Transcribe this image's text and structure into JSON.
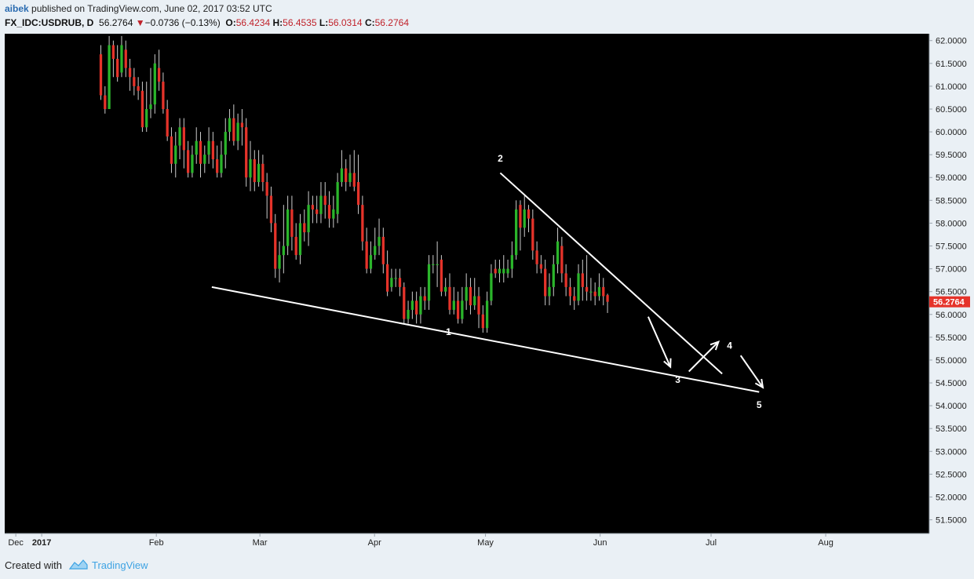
{
  "header": {
    "author": "aibek",
    "published_text": "published on TradingView.com, June 02, 2017 03:52 UTC",
    "symbol": "FX_IDC:USDRUB, D",
    "last_price": "56.2764",
    "change": "−0.0736 (−0.13%)",
    "open_label": "O:",
    "open": "56.4234",
    "high_label": "H:",
    "high": "56.4535",
    "low_label": "L:",
    "low": "56.0314",
    "close_label": "C:",
    "close": "56.2764"
  },
  "footer": {
    "created_with": "Created with",
    "brand": "TradingView"
  },
  "colors": {
    "background": "#000000",
    "up_candle": "#2bb52b",
    "down_candle": "#e5332a",
    "wick": "#cccccc",
    "annotation": "#ffffff",
    "price_tag": "#e5332a",
    "axis_panel": "#eaf0f5"
  },
  "chart_data": {
    "type": "candlestick",
    "symbol": "FX_IDC:USDRUB",
    "interval": "D",
    "ylim": [
      51.2,
      62.15
    ],
    "y_ticks": [
      "62.0000",
      "61.5000",
      "61.0000",
      "60.5000",
      "60.0000",
      "59.5000",
      "59.0000",
      "58.5000",
      "58.0000",
      "57.5000",
      "57.0000",
      "56.5000",
      "56.0000",
      "55.5000",
      "55.0000",
      "54.5000",
      "54.0000",
      "53.5000",
      "53.0000",
      "52.5000",
      "52.0000",
      "51.5000"
    ],
    "x_ticks": [
      {
        "label": "Dec",
        "day": -7
      },
      {
        "label": "2017",
        "day": 0
      },
      {
        "label": "Feb",
        "day": 31
      },
      {
        "label": "Mar",
        "day": 59
      },
      {
        "label": "Apr",
        "day": 90
      },
      {
        "label": "May",
        "day": 120
      },
      {
        "label": "Jun",
        "day": 151
      },
      {
        "label": "Jul",
        "day": 181
      },
      {
        "label": "Aug",
        "day": 212
      }
    ],
    "x_range_days": [
      -10,
      240
    ],
    "last_price_label": "56.2764",
    "last_price": 56.2764,
    "candles": [
      {
        "o": 61.7,
        "c": 60.8,
        "h": 61.9,
        "l": 60.7
      },
      {
        "o": 60.8,
        "c": 60.5,
        "h": 61.0,
        "l": 60.4
      },
      {
        "o": 60.5,
        "c": 61.9,
        "h": 62.1,
        "l": 60.5
      },
      {
        "o": 61.9,
        "c": 61.6,
        "h": 62.0,
        "l": 61.2
      },
      {
        "o": 61.6,
        "c": 61.2,
        "h": 61.9,
        "l": 61.1
      },
      {
        "o": 61.3,
        "c": 61.9,
        "h": 62.1,
        "l": 61.2
      },
      {
        "o": 61.8,
        "c": 61.4,
        "h": 62.0,
        "l": 61.2
      },
      {
        "o": 61.4,
        "c": 61.2,
        "h": 61.6,
        "l": 60.9
      },
      {
        "o": 61.2,
        "c": 61.0,
        "h": 61.4,
        "l": 60.8
      },
      {
        "o": 61.0,
        "c": 60.9,
        "h": 61.2,
        "l": 60.7
      },
      {
        "o": 60.9,
        "c": 60.1,
        "h": 61.1,
        "l": 60.0
      },
      {
        "o": 60.1,
        "c": 60.5,
        "h": 61.1,
        "l": 60.0
      },
      {
        "o": 60.5,
        "c": 60.6,
        "h": 61.4,
        "l": 60.3
      },
      {
        "o": 60.6,
        "c": 61.5,
        "h": 61.7,
        "l": 60.4
      },
      {
        "o": 61.4,
        "c": 61.1,
        "h": 61.8,
        "l": 60.9
      },
      {
        "o": 61.1,
        "c": 60.5,
        "h": 61.3,
        "l": 60.4
      },
      {
        "o": 60.5,
        "c": 59.9,
        "h": 60.7,
        "l": 59.8
      },
      {
        "o": 59.9,
        "c": 59.3,
        "h": 60.1,
        "l": 59.1
      },
      {
        "o": 59.3,
        "c": 59.7,
        "h": 60.0,
        "l": 59.0
      },
      {
        "o": 59.7,
        "c": 60.1,
        "h": 60.3,
        "l": 59.4
      },
      {
        "o": 60.1,
        "c": 59.6,
        "h": 60.3,
        "l": 59.2
      },
      {
        "o": 59.6,
        "c": 59.1,
        "h": 59.8,
        "l": 59.0
      },
      {
        "o": 59.1,
        "c": 59.5,
        "h": 59.7,
        "l": 59.0
      },
      {
        "o": 59.5,
        "c": 59.8,
        "h": 60.1,
        "l": 59.3
      },
      {
        "o": 59.8,
        "c": 59.3,
        "h": 60.0,
        "l": 59.0
      },
      {
        "o": 59.3,
        "c": 59.5,
        "h": 59.7,
        "l": 59.1
      },
      {
        "o": 59.5,
        "c": 59.8,
        "h": 60.1,
        "l": 59.3
      },
      {
        "o": 59.8,
        "c": 59.4,
        "h": 60.0,
        "l": 59.2
      },
      {
        "o": 59.4,
        "c": 59.1,
        "h": 59.7,
        "l": 59.0
      },
      {
        "o": 59.1,
        "c": 59.5,
        "h": 59.8,
        "l": 59.0
      },
      {
        "o": 59.5,
        "c": 60.0,
        "h": 60.3,
        "l": 59.2
      },
      {
        "o": 60.0,
        "c": 60.3,
        "h": 60.5,
        "l": 59.8
      },
      {
        "o": 60.3,
        "c": 59.8,
        "h": 60.6,
        "l": 59.7
      },
      {
        "o": 59.8,
        "c": 60.2,
        "h": 60.4,
        "l": 59.6
      },
      {
        "o": 60.2,
        "c": 60.1,
        "h": 60.5,
        "l": 59.7
      },
      {
        "o": 60.1,
        "c": 59.0,
        "h": 60.3,
        "l": 58.8
      },
      {
        "o": 59.0,
        "c": 59.4,
        "h": 59.8,
        "l": 58.7
      },
      {
        "o": 59.4,
        "c": 58.9,
        "h": 59.6,
        "l": 58.7
      },
      {
        "o": 58.9,
        "c": 59.3,
        "h": 59.6,
        "l": 58.8
      },
      {
        "o": 59.3,
        "c": 58.9,
        "h": 59.5,
        "l": 58.7
      },
      {
        "o": 58.9,
        "c": 58.6,
        "h": 59.1,
        "l": 58.1
      },
      {
        "o": 58.6,
        "c": 58.0,
        "h": 58.8,
        "l": 57.8
      },
      {
        "o": 58.0,
        "c": 57.0,
        "h": 58.2,
        "l": 56.8
      },
      {
        "o": 57.0,
        "c": 57.3,
        "h": 57.6,
        "l": 56.7
      },
      {
        "o": 57.3,
        "c": 57.5,
        "h": 58.4,
        "l": 56.9
      },
      {
        "o": 57.5,
        "c": 58.3,
        "h": 58.6,
        "l": 57.3
      },
      {
        "o": 58.3,
        "c": 57.7,
        "h": 58.6,
        "l": 57.4
      },
      {
        "o": 57.7,
        "c": 57.3,
        "h": 58.0,
        "l": 57.2
      },
      {
        "o": 57.3,
        "c": 58.0,
        "h": 58.2,
        "l": 57.1
      },
      {
        "o": 58.0,
        "c": 57.8,
        "h": 58.3,
        "l": 57.6
      },
      {
        "o": 57.8,
        "c": 58.4,
        "h": 58.7,
        "l": 57.5
      },
      {
        "o": 58.4,
        "c": 58.3,
        "h": 58.6,
        "l": 58.0
      },
      {
        "o": 58.3,
        "c": 58.2,
        "h": 58.6,
        "l": 58.0
      },
      {
        "o": 58.2,
        "c": 58.6,
        "h": 58.9,
        "l": 58.0
      },
      {
        "o": 58.6,
        "c": 58.4,
        "h": 58.9,
        "l": 58.1
      },
      {
        "o": 58.4,
        "c": 58.1,
        "h": 58.7,
        "l": 57.9
      },
      {
        "o": 58.1,
        "c": 58.3,
        "h": 58.6,
        "l": 57.9
      },
      {
        "o": 58.2,
        "c": 58.9,
        "h": 59.1,
        "l": 58.0
      },
      {
        "o": 58.9,
        "c": 59.2,
        "h": 59.6,
        "l": 58.8
      },
      {
        "o": 59.2,
        "c": 58.9,
        "h": 59.4,
        "l": 58.7
      },
      {
        "o": 58.9,
        "c": 59.1,
        "h": 59.5,
        "l": 58.8
      },
      {
        "o": 59.1,
        "c": 58.8,
        "h": 59.6,
        "l": 58.7
      },
      {
        "o": 58.9,
        "c": 58.4,
        "h": 59.5,
        "l": 58.2
      },
      {
        "o": 58.4,
        "c": 57.6,
        "h": 58.6,
        "l": 57.4
      },
      {
        "o": 57.6,
        "c": 57.0,
        "h": 57.9,
        "l": 56.9
      },
      {
        "o": 57.0,
        "c": 57.3,
        "h": 57.6,
        "l": 56.9
      },
      {
        "o": 57.3,
        "c": 57.5,
        "h": 57.9,
        "l": 57.2
      },
      {
        "o": 57.5,
        "c": 57.7,
        "h": 58.1,
        "l": 57.3
      },
      {
        "o": 57.7,
        "c": 57.1,
        "h": 57.9,
        "l": 56.9
      },
      {
        "o": 57.1,
        "c": 56.5,
        "h": 57.4,
        "l": 56.4
      },
      {
        "o": 56.6,
        "c": 56.8,
        "h": 57.0,
        "l": 56.5
      },
      {
        "o": 56.8,
        "c": 56.8,
        "h": 57.0,
        "l": 56.6
      },
      {
        "o": 56.8,
        "c": 56.6,
        "h": 57.0,
        "l": 56.4
      },
      {
        "o": 56.6,
        "c": 55.9,
        "h": 56.7,
        "l": 55.8
      },
      {
        "o": 55.9,
        "c": 56.1,
        "h": 56.3,
        "l": 55.8
      },
      {
        "o": 56.1,
        "c": 56.3,
        "h": 56.5,
        "l": 55.9
      },
      {
        "o": 56.3,
        "c": 56.0,
        "h": 56.5,
        "l": 55.8
      },
      {
        "o": 56.0,
        "c": 56.4,
        "h": 56.6,
        "l": 55.8
      },
      {
        "o": 56.4,
        "c": 56.3,
        "h": 56.6,
        "l": 56.1
      },
      {
        "o": 56.3,
        "c": 57.1,
        "h": 57.3,
        "l": 56.1
      },
      {
        "o": 57.1,
        "c": 57.1,
        "h": 57.3,
        "l": 56.9
      },
      {
        "o": 57.1,
        "c": 57.1,
        "h": 57.6,
        "l": 56.6
      },
      {
        "o": 57.2,
        "c": 56.5,
        "h": 57.3,
        "l": 56.4
      },
      {
        "o": 56.5,
        "c": 56.6,
        "h": 56.8,
        "l": 56.4
      },
      {
        "o": 56.6,
        "c": 56.1,
        "h": 56.9,
        "l": 56.0
      },
      {
        "o": 56.1,
        "c": 56.3,
        "h": 56.6,
        "l": 56.0
      },
      {
        "o": 56.3,
        "c": 55.9,
        "h": 56.5,
        "l": 55.8
      },
      {
        "o": 55.9,
        "c": 56.3,
        "h": 56.6,
        "l": 55.8
      },
      {
        "o": 56.3,
        "c": 56.6,
        "h": 56.9,
        "l": 56.1
      },
      {
        "o": 56.6,
        "c": 56.2,
        "h": 56.8,
        "l": 56.0
      },
      {
        "o": 56.2,
        "c": 56.4,
        "h": 56.8,
        "l": 56.1
      },
      {
        "o": 56.4,
        "c": 56.0,
        "h": 56.6,
        "l": 55.7
      },
      {
        "o": 56.0,
        "c": 55.7,
        "h": 56.2,
        "l": 55.6
      },
      {
        "o": 55.7,
        "c": 56.3,
        "h": 56.5,
        "l": 55.6
      },
      {
        "o": 56.3,
        "c": 56.9,
        "h": 57.1,
        "l": 56.2
      },
      {
        "o": 57.0,
        "c": 56.9,
        "h": 57.2,
        "l": 56.8
      },
      {
        "o": 56.9,
        "c": 57.0,
        "h": 57.2,
        "l": 56.7
      },
      {
        "o": 56.9,
        "c": 57.0,
        "h": 57.3,
        "l": 56.7
      },
      {
        "o": 56.9,
        "c": 57.0,
        "h": 57.2,
        "l": 56.8
      },
      {
        "o": 57.0,
        "c": 57.3,
        "h": 57.6,
        "l": 56.8
      },
      {
        "o": 57.3,
        "c": 58.3,
        "h": 58.5,
        "l": 57.2
      },
      {
        "o": 58.4,
        "c": 57.9,
        "h": 58.5,
        "l": 57.4
      },
      {
        "o": 57.9,
        "c": 58.3,
        "h": 58.6,
        "l": 57.7
      },
      {
        "o": 58.3,
        "c": 58.1,
        "h": 58.4,
        "l": 57.8
      },
      {
        "o": 58.1,
        "c": 57.4,
        "h": 58.3,
        "l": 57.2
      },
      {
        "o": 57.4,
        "c": 57.1,
        "h": 57.6,
        "l": 56.9
      },
      {
        "o": 57.1,
        "c": 57.0,
        "h": 57.3,
        "l": 56.9
      },
      {
        "o": 57.0,
        "c": 56.4,
        "h": 57.2,
        "l": 56.2
      },
      {
        "o": 56.4,
        "c": 56.6,
        "h": 56.9,
        "l": 56.2
      },
      {
        "o": 56.6,
        "c": 57.1,
        "h": 57.3,
        "l": 56.4
      },
      {
        "o": 57.1,
        "c": 57.6,
        "h": 57.9,
        "l": 56.9
      },
      {
        "o": 57.5,
        "c": 56.9,
        "h": 57.7,
        "l": 56.7
      },
      {
        "o": 56.9,
        "c": 56.6,
        "h": 57.1,
        "l": 56.4
      },
      {
        "o": 56.6,
        "c": 56.4,
        "h": 56.8,
        "l": 56.2
      },
      {
        "o": 56.4,
        "c": 56.3,
        "h": 56.6,
        "l": 56.1
      },
      {
        "o": 56.3,
        "c": 56.9,
        "h": 57.1,
        "l": 56.2
      },
      {
        "o": 56.9,
        "c": 56.6,
        "h": 57.2,
        "l": 56.3
      },
      {
        "o": 56.6,
        "c": 56.5,
        "h": 57.3,
        "l": 56.3
      },
      {
        "o": 56.5,
        "c": 56.5,
        "h": 56.8,
        "l": 56.3
      },
      {
        "o": 56.5,
        "c": 56.4,
        "h": 56.7,
        "l": 56.2
      },
      {
        "o": 56.4,
        "c": 56.6,
        "h": 56.9,
        "l": 56.3
      },
      {
        "o": 56.6,
        "c": 56.4,
        "h": 56.8,
        "l": 56.2
      },
      {
        "o": 56.4234,
        "c": 56.2764,
        "h": 56.4535,
        "l": 56.0314
      }
    ],
    "annotations": {
      "lower_trendline": {
        "from": {
          "day": 46,
          "price": 56.6
        },
        "to": {
          "day": 194,
          "price": 54.3
        }
      },
      "upper_trendline": {
        "from": {
          "day": 124,
          "price": 59.1
        },
        "to": {
          "day": 184,
          "price": 54.7
        }
      },
      "wave_labels": [
        {
          "text": "1",
          "day": 110,
          "price": 55.55
        },
        {
          "text": "2",
          "day": 124,
          "price": 59.35
        },
        {
          "text": "3",
          "day": 172,
          "price": 54.5
        },
        {
          "text": "4",
          "day": 186,
          "price": 55.25
        },
        {
          "text": "5",
          "day": 194,
          "price": 53.95
        }
      ],
      "arrows": [
        {
          "from": {
            "day": 164,
            "price": 55.95
          },
          "to": {
            "day": 170,
            "price": 54.85
          }
        },
        {
          "from": {
            "day": 175,
            "price": 54.75
          },
          "to": {
            "day": 183,
            "price": 55.4
          }
        },
        {
          "from": {
            "day": 189,
            "price": 55.1
          },
          "to": {
            "day": 195,
            "price": 54.4
          }
        }
      ]
    }
  }
}
